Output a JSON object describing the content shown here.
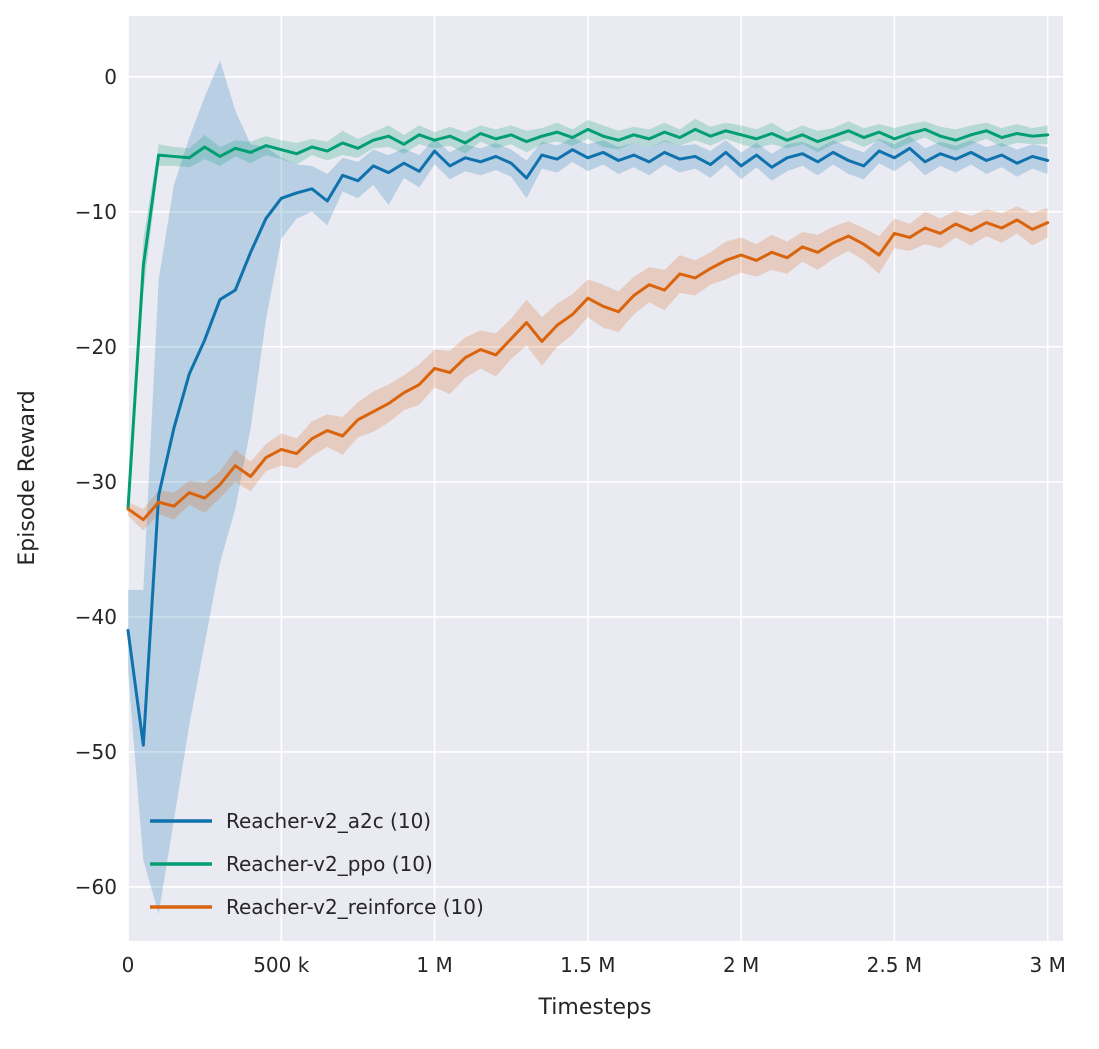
{
  "chart_data": {
    "type": "line",
    "title": "",
    "xlabel": "Timesteps",
    "ylabel": "Episode Reward",
    "x_unit": "millions of timesteps",
    "xlim_millions": [
      0,
      3.05
    ],
    "ylim": [
      -64,
      4.5
    ],
    "grid": true,
    "background": "#ffffff",
    "plot_background": "#eaeaf2",
    "grid_color": "#ffffff",
    "legend_position": "lower left",
    "x_ticks": [
      {
        "v": 0,
        "label": "0"
      },
      {
        "v": 0.5,
        "label": "500 k"
      },
      {
        "v": 1,
        "label": "1 M"
      },
      {
        "v": 1.5,
        "label": "1.5 M"
      },
      {
        "v": 2,
        "label": "2 M"
      },
      {
        "v": 2.5,
        "label": "2.5 M"
      },
      {
        "v": 3,
        "label": "3 M"
      }
    ],
    "y_ticks": [
      {
        "v": 0,
        "label": "0"
      },
      {
        "v": -10,
        "label": "−10"
      },
      {
        "v": -20,
        "label": "−20"
      },
      {
        "v": -30,
        "label": "−30"
      },
      {
        "v": -40,
        "label": "−40"
      },
      {
        "v": -50,
        "label": "−50"
      },
      {
        "v": -60,
        "label": "−60"
      }
    ],
    "x_millions": [
      0,
      0.05,
      0.1,
      0.15,
      0.2,
      0.25,
      0.3,
      0.35,
      0.4,
      0.45,
      0.5,
      0.55,
      0.6,
      0.65,
      0.7,
      0.75,
      0.8,
      0.85,
      0.9,
      0.95,
      1.0,
      1.05,
      1.1,
      1.15,
      1.2,
      1.25,
      1.3,
      1.35,
      1.4,
      1.45,
      1.5,
      1.55,
      1.6,
      1.65,
      1.7,
      1.75,
      1.8,
      1.85,
      1.9,
      1.95,
      2.0,
      2.05,
      2.1,
      2.15,
      2.2,
      2.25,
      2.3,
      2.35,
      2.4,
      2.45,
      2.5,
      2.55,
      2.6,
      2.65,
      2.7,
      2.75,
      2.8,
      2.85,
      2.9,
      2.95,
      3.0
    ],
    "series": [
      {
        "name": "Reacher-v2_a2c (10)",
        "color": "#0f72ad",
        "mean": [
          -41.0,
          -49.5,
          -31.0,
          -26.0,
          -22.0,
          -19.5,
          -16.5,
          -15.8,
          -13.0,
          -10.5,
          -9.0,
          -8.6,
          -8.3,
          -9.2,
          -7.3,
          -7.7,
          -6.6,
          -7.1,
          -6.4,
          -7.0,
          -5.5,
          -6.6,
          -6.0,
          -6.3,
          -5.9,
          -6.4,
          -7.5,
          -5.8,
          -6.1,
          -5.4,
          -6.0,
          -5.6,
          -6.2,
          -5.8,
          -6.3,
          -5.6,
          -6.1,
          -5.9,
          -6.5,
          -5.6,
          -6.6,
          -5.8,
          -6.7,
          -6.0,
          -5.7,
          -6.3,
          -5.6,
          -6.2,
          -6.6,
          -5.5,
          -6.0,
          -5.3,
          -6.3,
          -5.7,
          -6.1,
          -5.6,
          -6.2,
          -5.8,
          -6.4,
          -5.9,
          -6.2
        ],
        "lower": [
          -44,
          -58,
          -62,
          -55,
          -48,
          -42,
          -36,
          -32,
          -26,
          -18,
          -12,
          -10.5,
          -10,
          -11,
          -8.5,
          -9,
          -8,
          -9.5,
          -7.5,
          -8.2,
          -6.5,
          -7.6,
          -7.0,
          -7.3,
          -6.9,
          -7.4,
          -9.0,
          -6.8,
          -7.1,
          -6.3,
          -7.0,
          -6.5,
          -7.2,
          -6.7,
          -7.3,
          -6.5,
          -7.1,
          -6.8,
          -7.5,
          -6.5,
          -7.6,
          -6.7,
          -7.7,
          -7.0,
          -6.6,
          -7.3,
          -6.5,
          -7.2,
          -7.6,
          -6.4,
          -7.0,
          -6.2,
          -7.3,
          -6.6,
          -7.1,
          -6.5,
          -7.2,
          -6.7,
          -7.4,
          -6.8,
          -7.2
        ],
        "upper": [
          -38,
          -38,
          -15,
          -8,
          -4.5,
          -1.5,
          1.2,
          -2.5,
          -5.0,
          -5.2,
          -6.0,
          -6.5,
          -6.6,
          -7.2,
          -6.0,
          -6.3,
          -5.4,
          -5.8,
          -5.3,
          -5.8,
          -4.6,
          -5.6,
          -5.0,
          -5.3,
          -4.9,
          -5.4,
          -6.2,
          -4.8,
          -5.1,
          -4.5,
          -5.0,
          -4.7,
          -5.2,
          -4.9,
          -5.3,
          -4.7,
          -5.1,
          -5.0,
          -5.5,
          -4.7,
          -5.6,
          -4.9,
          -5.7,
          -5.0,
          -4.8,
          -5.3,
          -4.7,
          -5.2,
          -5.6,
          -4.6,
          -5.0,
          -4.4,
          -5.3,
          -4.8,
          -5.1,
          -4.7,
          -5.2,
          -4.9,
          -5.4,
          -5.0,
          -5.2
        ]
      },
      {
        "name": "Reacher-v2_ppo (10)",
        "color": "#029e73",
        "mean": [
          -32.0,
          -14.0,
          -5.8,
          -5.9,
          -6.0,
          -5.2,
          -5.9,
          -5.3,
          -5.6,
          -5.1,
          -5.4,
          -5.7,
          -5.2,
          -5.5,
          -4.9,
          -5.3,
          -4.7,
          -4.4,
          -5.0,
          -4.3,
          -4.7,
          -4.4,
          -4.9,
          -4.2,
          -4.6,
          -4.3,
          -4.8,
          -4.4,
          -4.1,
          -4.5,
          -3.9,
          -4.4,
          -4.7,
          -4.3,
          -4.6,
          -4.1,
          -4.5,
          -3.9,
          -4.4,
          -4.0,
          -4.3,
          -4.6,
          -4.2,
          -4.7,
          -4.3,
          -4.8,
          -4.4,
          -4.0,
          -4.5,
          -4.1,
          -4.6,
          -4.2,
          -3.9,
          -4.4,
          -4.7,
          -4.3,
          -4.0,
          -4.5,
          -4.2,
          -4.4,
          -4.3
        ],
        "halfwidth": [
          0.5,
          2.0,
          0.8,
          0.7,
          0.7,
          0.9,
          0.7,
          0.6,
          0.8,
          0.7,
          0.7,
          0.8,
          0.6,
          0.7,
          0.9,
          0.7,
          0.6,
          0.8,
          0.7,
          0.7,
          0.6,
          0.7,
          0.8,
          0.6,
          0.7,
          0.7,
          0.8,
          0.6,
          0.7,
          0.6,
          0.7,
          0.8,
          0.7,
          0.6,
          0.7,
          0.7,
          0.6,
          0.8,
          0.7,
          0.6,
          0.7,
          0.7,
          0.8,
          0.6,
          0.7,
          0.8,
          0.6,
          0.7,
          0.7,
          0.6,
          0.8,
          0.7,
          0.6,
          0.7,
          0.8,
          0.7,
          0.6,
          0.7,
          0.7,
          0.6,
          0.7
        ]
      },
      {
        "name": "Reacher-v2_reinforce (10)",
        "color": "#d9640d",
        "mean": [
          -32.0,
          -32.8,
          -31.5,
          -31.8,
          -30.8,
          -31.2,
          -30.2,
          -28.8,
          -29.6,
          -28.2,
          -27.6,
          -27.9,
          -26.8,
          -26.2,
          -26.6,
          -25.4,
          -24.8,
          -24.2,
          -23.4,
          -22.8,
          -21.6,
          -21.9,
          -20.8,
          -20.2,
          -20.6,
          -19.4,
          -18.2,
          -19.6,
          -18.4,
          -17.6,
          -16.4,
          -17.0,
          -17.4,
          -16.2,
          -15.4,
          -15.8,
          -14.6,
          -14.9,
          -14.2,
          -13.6,
          -13.2,
          -13.6,
          -13.0,
          -13.4,
          -12.6,
          -13.0,
          -12.3,
          -11.8,
          -12.4,
          -13.2,
          -11.6,
          -11.9,
          -11.2,
          -11.6,
          -10.9,
          -11.4,
          -10.8,
          -11.2,
          -10.6,
          -11.3,
          -10.8
        ],
        "halfwidth": [
          0.5,
          0.8,
          0.9,
          1.0,
          0.9,
          1.1,
          1.0,
          1.2,
          1.1,
          1.0,
          1.2,
          1.1,
          1.3,
          1.2,
          1.4,
          1.3,
          1.5,
          1.4,
          1.3,
          1.5,
          1.4,
          1.6,
          1.5,
          1.4,
          1.6,
          1.5,
          1.7,
          1.8,
          1.6,
          1.5,
          1.4,
          1.6,
          1.5,
          1.4,
          1.3,
          1.5,
          1.4,
          1.3,
          1.2,
          1.4,
          1.3,
          1.2,
          1.3,
          1.2,
          1.1,
          1.3,
          1.2,
          1.1,
          1.2,
          1.4,
          1.1,
          1.0,
          1.2,
          1.1,
          1.0,
          1.1,
          1.0,
          1.1,
          1.0,
          1.2,
          1.1
        ]
      }
    ],
    "band_alpha": 0.22,
    "line_width": 3
  }
}
